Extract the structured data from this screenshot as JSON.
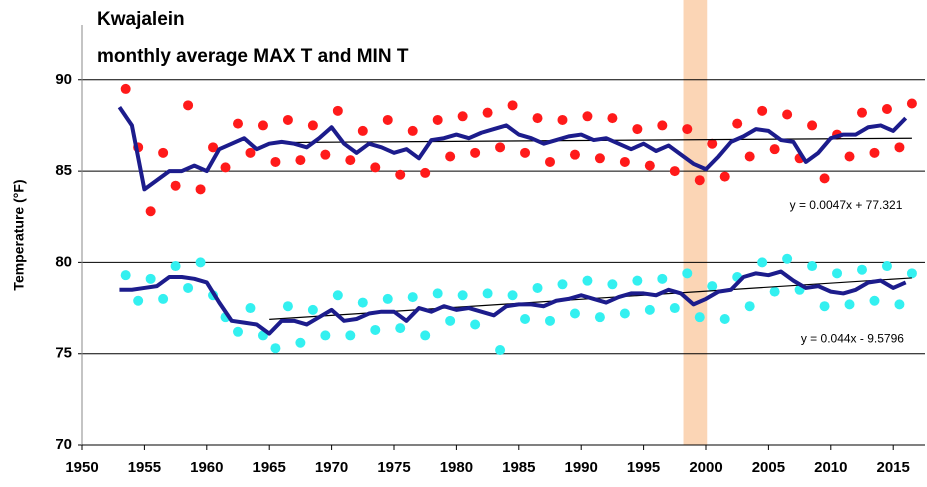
{
  "chart_data": {
    "type": "scatter",
    "title": "Kwajalein",
    "subtitle": "monthly average MAX T and MIN T",
    "ylabel": "Temperature (°F)",
    "xlim": [
      1950,
      2017
    ],
    "ylim": [
      70,
      93
    ],
    "xticks": [
      1950,
      1955,
      1960,
      1965,
      1970,
      1975,
      1980,
      1985,
      1990,
      1995,
      2000,
      2005,
      2010,
      2015
    ],
    "yticks": [
      70,
      75,
      80,
      85,
      90
    ],
    "grid": true,
    "highlight": {
      "range": [
        1998.2,
        2000.1
      ],
      "color": "#fbd5b5"
    },
    "annotations": [
      {
        "text": "y = 0.0047x + 77.321",
        "x": 2006.7,
        "y": 83.1
      },
      {
        "text": "y = 0.044x - 9.5796",
        "x": 2007.6,
        "y": 75.8
      }
    ],
    "series": [
      {
        "kind": "scatter",
        "color": "#ff1a1a",
        "x": [
          1953.5,
          1954.5,
          1955.5,
          1956.5,
          1957.5,
          1958.5,
          1959.5,
          1960.5,
          1961.5,
          1962.5,
          1963.5,
          1964.5,
          1965.5,
          1966.5,
          1967.5,
          1968.5,
          1969.5,
          1970.5,
          1971.5,
          1972.5,
          1973.5,
          1974.5,
          1975.5,
          1976.5,
          1977.5,
          1978.5,
          1979.5,
          1980.5,
          1981.5,
          1982.5,
          1983.5,
          1984.5,
          1985.5,
          1986.5,
          1987.5,
          1988.5,
          1989.5,
          1990.5,
          1991.5,
          1992.5,
          1993.5,
          1994.5,
          1995.5,
          1996.5,
          1997.5,
          1998.5,
          1999.5,
          2000.5,
          2001.5,
          2002.5,
          2003.5,
          2004.5,
          2005.5,
          2006.5,
          2007.5,
          2008.5,
          2009.5,
          2010.5,
          2011.5,
          2012.5,
          2013.5,
          2014.5,
          2015.5,
          2016.5
        ],
        "values": [
          89.5,
          86.3,
          82.8,
          86.0,
          84.2,
          88.6,
          84.0,
          86.3,
          85.2,
          87.6,
          86.0,
          87.5,
          85.5,
          87.8,
          85.6,
          87.5,
          85.9,
          88.3,
          85.6,
          87.2,
          85.2,
          87.8,
          84.8,
          87.2,
          84.9,
          87.8,
          85.8,
          88.0,
          86.0,
          88.2,
          86.3,
          88.6,
          86.0,
          87.9,
          85.5,
          87.8,
          85.9,
          88.0,
          85.7,
          87.9,
          85.5,
          87.3,
          85.3,
          87.5,
          85.0,
          87.3,
          84.5,
          86.5,
          84.7,
          87.6,
          85.8,
          88.3,
          86.2,
          88.1,
          85.7,
          87.5,
          84.6,
          87.0,
          85.8,
          88.2,
          86.0,
          88.4,
          86.3,
          88.7
        ]
      },
      {
        "kind": "scatter",
        "color": "#33f0f0",
        "x": [
          1953.5,
          1954.5,
          1955.5,
          1956.5,
          1957.5,
          1958.5,
          1959.5,
          1960.5,
          1961.5,
          1962.5,
          1963.5,
          1964.5,
          1965.5,
          1966.5,
          1967.5,
          1968.5,
          1969.5,
          1970.5,
          1971.5,
          1972.5,
          1973.5,
          1974.5,
          1975.5,
          1976.5,
          1977.5,
          1978.5,
          1979.5,
          1980.5,
          1981.5,
          1982.5,
          1983.5,
          1984.5,
          1985.5,
          1986.5,
          1987.5,
          1988.5,
          1989.5,
          1990.5,
          1991.5,
          1992.5,
          1993.5,
          1994.5,
          1995.5,
          1996.5,
          1997.5,
          1998.5,
          1999.5,
          2000.5,
          2001.5,
          2002.5,
          2003.5,
          2004.5,
          2005.5,
          2006.5,
          2007.5,
          2008.5,
          2009.5,
          2010.5,
          2011.5,
          2012.5,
          2013.5,
          2014.5,
          2015.5,
          2016.5
        ],
        "values": [
          79.3,
          77.9,
          79.1,
          78.0,
          79.8,
          78.6,
          80.0,
          78.2,
          77.0,
          76.2,
          77.5,
          76.0,
          75.3,
          77.6,
          75.6,
          77.4,
          76.0,
          78.2,
          76.0,
          77.8,
          76.3,
          78.0,
          76.4,
          78.1,
          76.0,
          78.3,
          76.8,
          78.2,
          76.6,
          78.3,
          75.2,
          78.2,
          76.9,
          78.6,
          76.8,
          78.8,
          77.2,
          79.0,
          77.0,
          78.8,
          77.2,
          79.0,
          77.4,
          79.1,
          77.5,
          79.4,
          77.0,
          78.7,
          76.9,
          79.2,
          77.6,
          80.0,
          78.4,
          80.2,
          78.5,
          79.8,
          77.6,
          79.4,
          77.7,
          79.6,
          77.9,
          79.8,
          77.7,
          79.4
        ]
      },
      {
        "kind": "line",
        "color": "#1c1c8c",
        "x": [
          1953,
          1954,
          1955,
          1956,
          1957,
          1958,
          1959,
          1960,
          1961,
          1962,
          1963,
          1964,
          1965,
          1966,
          1967,
          1968,
          1969,
          1970,
          1971,
          1972,
          1973,
          1974,
          1975,
          1976,
          1977,
          1978,
          1979,
          1980,
          1981,
          1982,
          1983,
          1984,
          1985,
          1986,
          1987,
          1988,
          1989,
          1990,
          1991,
          1992,
          1993,
          1994,
          1995,
          1996,
          1997,
          1998,
          1999,
          2000,
          2001,
          2002,
          2003,
          2004,
          2005,
          2006,
          2007,
          2008,
          2009,
          2010,
          2011,
          2012,
          2013,
          2014,
          2015,
          2016
        ],
        "values": [
          88.5,
          87.5,
          84,
          84.5,
          85,
          85,
          85.3,
          85,
          86.2,
          86.5,
          86.8,
          86.2,
          86.5,
          86.6,
          86.5,
          86.3,
          86.8,
          87.4,
          86.5,
          86,
          86.5,
          86.3,
          86,
          86.2,
          85.7,
          86.7,
          86.8,
          87,
          86.8,
          87.1,
          87.3,
          87.5,
          87,
          86.8,
          86.5,
          86.7,
          86.9,
          87,
          86.7,
          86.8,
          86.5,
          86.2,
          86.5,
          86.1,
          86.4,
          85.9,
          85.4,
          85.1,
          85.8,
          86.6,
          86.9,
          87.3,
          87.2,
          86.7,
          86.6,
          85.5,
          86,
          86.8,
          87,
          87,
          87.4,
          87.5,
          87.2,
          87.9
        ]
      },
      {
        "kind": "line",
        "color": "#1c1c8c",
        "x": [
          1953,
          1954,
          1955,
          1956,
          1957,
          1958,
          1959,
          1960,
          1961,
          1962,
          1963,
          1964,
          1965,
          1966,
          1967,
          1968,
          1969,
          1970,
          1971,
          1972,
          1973,
          1974,
          1975,
          1976,
          1977,
          1978,
          1979,
          1980,
          1981,
          1982,
          1983,
          1984,
          1985,
          1986,
          1987,
          1988,
          1989,
          1990,
          1991,
          1992,
          1993,
          1994,
          1995,
          1996,
          1997,
          1998,
          1999,
          2000,
          2001,
          2002,
          2003,
          2004,
          2005,
          2006,
          2007,
          2008,
          2009,
          2010,
          2011,
          2012,
          2013,
          2014,
          2015,
          2016
        ],
        "values": [
          78.5,
          78.5,
          78.6,
          78.7,
          79.2,
          79.2,
          79.1,
          78.9,
          77.8,
          76.8,
          76.7,
          76.6,
          76.1,
          76.8,
          76.8,
          76.6,
          77,
          77.4,
          76.8,
          76.9,
          77.2,
          77.3,
          77.3,
          76.8,
          77.5,
          77.3,
          77.6,
          77.4,
          77.5,
          77.3,
          77.1,
          77.6,
          77.7,
          77.7,
          77.6,
          77.9,
          78,
          78.2,
          78,
          77.8,
          78.1,
          78.3,
          78.3,
          78.2,
          78.5,
          78.3,
          77.7,
          78,
          78.4,
          78.5,
          79.2,
          79.4,
          79.3,
          79.5,
          79,
          78.6,
          78.7,
          78.4,
          78.3,
          78.5,
          78.9,
          79,
          78.6,
          78.9
        ]
      },
      {
        "kind": "trend",
        "color": "#000000",
        "x": [
          1965,
          2016.5
        ],
        "values": [
          86.56,
          86.8
        ]
      },
      {
        "kind": "trend",
        "color": "#000000",
        "x": [
          1965,
          2016.5
        ],
        "values": [
          76.88,
          79.15
        ]
      }
    ]
  }
}
